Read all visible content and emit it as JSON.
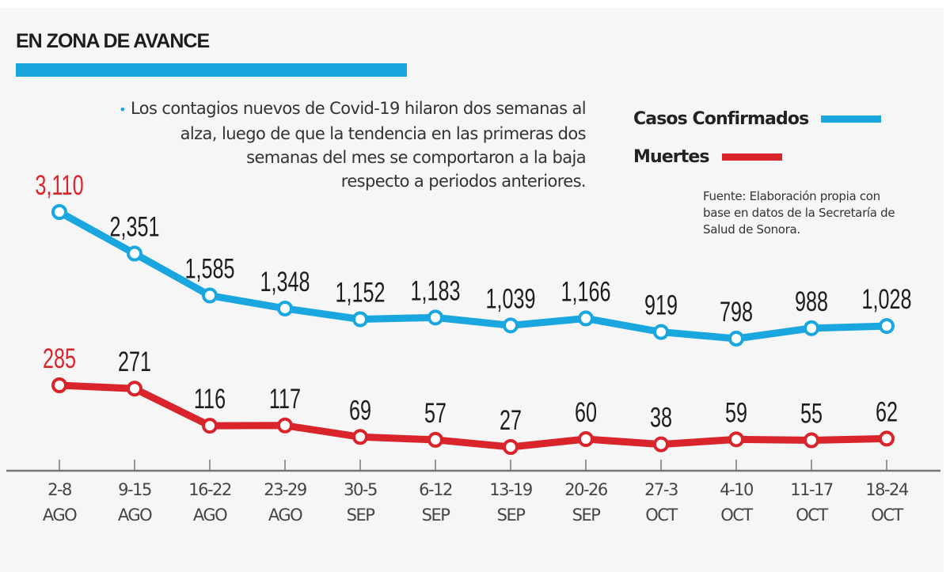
{
  "header": {
    "title": "EN ZONA DE AVANCE",
    "summary_line1": "Los contagios nuevos de Covid-19 hilaron dos semanas al",
    "summary_line2": "alza, luego de que la tendencia en las primeras dos",
    "summary_line3": "semanas del mes se comportaron a la baja",
    "summary_line4": "respecto a periodos anteriores.",
    "bullet": "•"
  },
  "legend": {
    "items": [
      {
        "label": "Casos Confirmados",
        "color": "#1aa7e0"
      },
      {
        "label": "Muertes",
        "color": "#d9242b"
      }
    ]
  },
  "source": {
    "line1": "Fuente: Elaboración propia con",
    "line2": "base en datos de la Secretaría de",
    "line3": "Salud de Sonora."
  },
  "colors": {
    "accent_blue": "#1aa7e0",
    "accent_red": "#d9242b",
    "label_dark": "#1d1d1d",
    "axis": "#777777"
  },
  "chart_data": {
    "type": "line",
    "title": "EN ZONA DE AVANCE",
    "xlabel": "",
    "ylabel": "",
    "grid": false,
    "legend_position": "top-right",
    "categories": [
      [
        "2-8",
        "AGO"
      ],
      [
        "9-15",
        "AGO"
      ],
      [
        "16-22",
        "AGO"
      ],
      [
        "23-29",
        "AGO"
      ],
      [
        "30-5",
        "SEP"
      ],
      [
        "6-12",
        "SEP"
      ],
      [
        "13-19",
        "SEP"
      ],
      [
        "20-26",
        "SEP"
      ],
      [
        "27-3",
        "OCT"
      ],
      [
        "4-10",
        "OCT"
      ],
      [
        "11-17",
        "OCT"
      ],
      [
        "18-24",
        "OCT"
      ]
    ],
    "series": [
      {
        "name": "Casos Confirmados",
        "color": "#1aa7e0",
        "values": [
          3110,
          2351,
          1585,
          1348,
          1152,
          1183,
          1039,
          1166,
          919,
          798,
          988,
          1028
        ],
        "labels": [
          "3,110",
          "2,351",
          "1,585",
          "1,348",
          "1,152",
          "1,183",
          "1,039",
          "1,166",
          "919",
          "798",
          "988",
          "1,028"
        ],
        "highlight_first_label": true
      },
      {
        "name": "Muertes",
        "color": "#d9242b",
        "values": [
          285,
          271,
          116,
          117,
          69,
          57,
          27,
          60,
          38,
          59,
          55,
          62
        ],
        "labels": [
          "285",
          "271",
          "116",
          "117",
          "69",
          "57",
          "27",
          "60",
          "38",
          "59",
          "55",
          "62"
        ],
        "highlight_first_label": true
      }
    ]
  }
}
